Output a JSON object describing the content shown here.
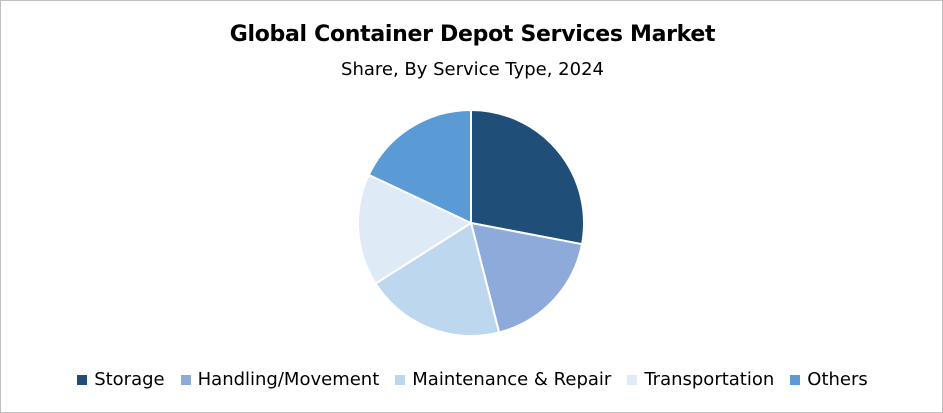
{
  "chart_data": {
    "type": "pie",
    "title": "Global Container Depot Services Market",
    "subtitle": "Share, By Service Type, 2024",
    "categories": [
      "Storage",
      "Handling/Movement",
      "Maintenance & Repair",
      "Transportation",
      "Others"
    ],
    "values": [
      28,
      18,
      20,
      16,
      18
    ],
    "colors": [
      "#1f4e79",
      "#8eaadb",
      "#bdd7ee",
      "#deebf7",
      "#5b9bd5"
    ],
    "start_angle": "12 o'clock",
    "direction": "clockwise",
    "legend_position": "bottom"
  }
}
